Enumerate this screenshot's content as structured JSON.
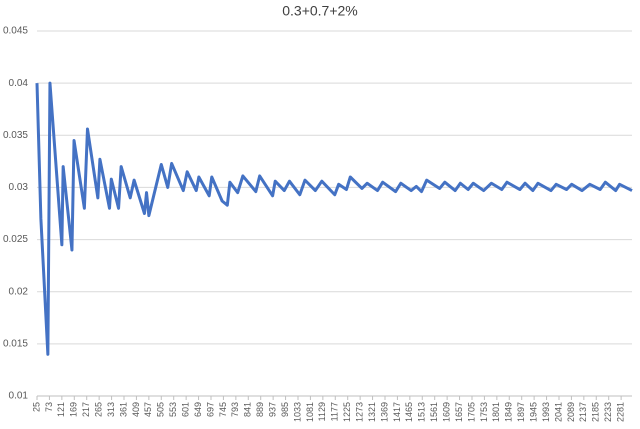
{
  "chart_data": {
    "type": "line",
    "title": "0.3+0.7+2%",
    "x": [
      25,
      40,
      67,
      75,
      121,
      126,
      160,
      168,
      208,
      220,
      260,
      268,
      305,
      312,
      340,
      350,
      385,
      400,
      440,
      448,
      457,
      505,
      530,
      545,
      590,
      605,
      640,
      650,
      690,
      700,
      740,
      760,
      770,
      800,
      820,
      870,
      885,
      935,
      945,
      980,
      1000,
      1040,
      1060,
      1100,
      1125,
      1175,
      1190,
      1220,
      1235,
      1280,
      1300,
      1340,
      1360,
      1410,
      1430,
      1470,
      1490,
      1510,
      1530,
      1580,
      1600,
      1640,
      1660,
      1690,
      1710,
      1750,
      1780,
      1820,
      1840,
      1890,
      1910,
      1940,
      1960,
      2010,
      2030,
      2070,
      2090,
      2130,
      2160,
      2200,
      2220,
      2260,
      2275,
      2323
    ],
    "series": [
      {
        "color": "#4472c4",
        "values": [
          0.04,
          0.027,
          0.014,
          0.04,
          0.0245,
          0.032,
          0.024,
          0.0345,
          0.028,
          0.0356,
          0.029,
          0.0327,
          0.028,
          0.0308,
          0.028,
          0.032,
          0.029,
          0.0307,
          0.0275,
          0.0295,
          0.0273,
          0.0322,
          0.03,
          0.0323,
          0.0297,
          0.0315,
          0.0297,
          0.031,
          0.0292,
          0.031,
          0.0287,
          0.0283,
          0.0305,
          0.0295,
          0.0311,
          0.0296,
          0.0311,
          0.0292,
          0.0306,
          0.0297,
          0.0306,
          0.0293,
          0.0307,
          0.0297,
          0.0306,
          0.0293,
          0.0303,
          0.0298,
          0.031,
          0.0299,
          0.0304,
          0.0297,
          0.0305,
          0.0296,
          0.0304,
          0.0297,
          0.0301,
          0.0296,
          0.0307,
          0.0299,
          0.0305,
          0.0297,
          0.0304,
          0.0298,
          0.0304,
          0.0297,
          0.0304,
          0.0298,
          0.0305,
          0.0298,
          0.0304,
          0.0297,
          0.0304,
          0.0297,
          0.0303,
          0.0298,
          0.0303,
          0.0297,
          0.0303,
          0.0298,
          0.0305,
          0.0297,
          0.0303,
          0.0297
        ]
      }
    ],
    "xlim": [
      25,
      2323
    ],
    "xticks": [
      25,
      73,
      121,
      169,
      217,
      265,
      313,
      361,
      409,
      457,
      505,
      553,
      601,
      649,
      697,
      745,
      793,
      841,
      889,
      937,
      985,
      1033,
      1081,
      1129,
      1177,
      1225,
      1273,
      1321,
      1369,
      1417,
      1465,
      1513,
      1561,
      1609,
      1657,
      1705,
      1753,
      1801,
      1849,
      1897,
      1945,
      1993,
      2041,
      2089,
      2137,
      2185,
      2233,
      2281
    ],
    "ylim": [
      0.01,
      0.045
    ],
    "yticks": [
      0.01,
      0.015,
      0.02,
      0.025,
      0.03,
      0.035,
      0.04,
      0.045
    ],
    "grid": true
  }
}
